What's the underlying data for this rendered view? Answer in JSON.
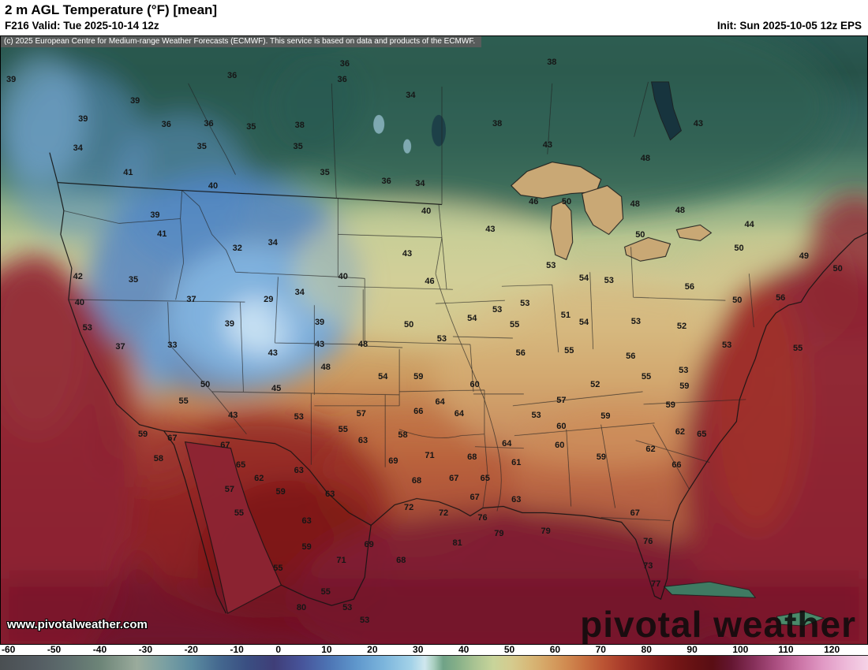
{
  "header": {
    "title": "2 m AGL Temperature (°F) [mean]",
    "valid_label": "F216 Valid: Tue 2025-10-14 12z",
    "init_label": "Init: Sun 2025-10-05 12z EPS"
  },
  "map": {
    "copyright": "(c) 2025 European Centre for Medium-range Weather Forecasts (ECMWF). This service is based on data and products of the ECMWF.",
    "watermark": "pivotal weather",
    "website": "www.pivotalweather.com",
    "units": "°F",
    "label_format": [
      "temp_f",
      "x_pct",
      "y_pct"
    ],
    "labels": [
      [
        36,
        39.7,
        4.5
      ],
      [
        38,
        63.6,
        4.3
      ],
      [
        39,
        1.2,
        7.1
      ],
      [
        36,
        26.7,
        6.5
      ],
      [
        36,
        39.4,
        7.1
      ],
      [
        39,
        15.5,
        10.7
      ],
      [
        34,
        47.3,
        9.7
      ],
      [
        39,
        9.5,
        13.6
      ],
      [
        36,
        19.1,
        14.5
      ],
      [
        36,
        24.0,
        14.4
      ],
      [
        35,
        28.9,
        14.9
      ],
      [
        38,
        34.5,
        14.6
      ],
      [
        38,
        57.3,
        14.4
      ],
      [
        43,
        80.5,
        14.4
      ],
      [
        34,
        8.9,
        18.4
      ],
      [
        35,
        23.2,
        18.1
      ],
      [
        35,
        34.3,
        18.2
      ],
      [
        43,
        63.1,
        17.9
      ],
      [
        48,
        74.4,
        20.1
      ],
      [
        41,
        14.7,
        22.5
      ],
      [
        35,
        37.4,
        22.4
      ],
      [
        36,
        44.5,
        23.9
      ],
      [
        34,
        48.4,
        24.2
      ],
      [
        40,
        24.5,
        24.7
      ],
      [
        46,
        61.5,
        27.3
      ],
      [
        50,
        65.3,
        27.3
      ],
      [
        48,
        73.2,
        27.6
      ],
      [
        48,
        78.4,
        28.7
      ],
      [
        39,
        17.8,
        29.4
      ],
      [
        40,
        49.1,
        28.8
      ],
      [
        44,
        86.4,
        31.0
      ],
      [
        41,
        18.6,
        32.6
      ],
      [
        43,
        56.5,
        31.8
      ],
      [
        50,
        73.8,
        32.7
      ],
      [
        32,
        27.3,
        34.9
      ],
      [
        34,
        31.4,
        34.0
      ],
      [
        50,
        85.2,
        34.9
      ],
      [
        49,
        92.7,
        36.2
      ],
      [
        50,
        96.6,
        38.3
      ],
      [
        42,
        8.9,
        39.5
      ],
      [
        35,
        15.3,
        40.1
      ],
      [
        43,
        46.9,
        35.8
      ],
      [
        46,
        49.5,
        40.4
      ],
      [
        53,
        63.5,
        37.8
      ],
      [
        54,
        67.3,
        39.8
      ],
      [
        53,
        70.2,
        40.2
      ],
      [
        56,
        79.5,
        41.3
      ],
      [
        50,
        85.0,
        43.5
      ],
      [
        56,
        90.0,
        43.1
      ],
      [
        40,
        9.1,
        43.9
      ],
      [
        37,
        22.0,
        43.3
      ],
      [
        34,
        34.5,
        42.2
      ],
      [
        29,
        30.9,
        43.3
      ],
      [
        40,
        39.5,
        39.5
      ],
      [
        39,
        36.8,
        47.1
      ],
      [
        53,
        57.3,
        45.0
      ],
      [
        53,
        60.5,
        44.0
      ],
      [
        55,
        59.3,
        47.5
      ],
      [
        51,
        65.2,
        45.9
      ],
      [
        54,
        67.3,
        47.1
      ],
      [
        53,
        73.3,
        47.0
      ],
      [
        52,
        78.6,
        47.7
      ],
      [
        53,
        10.0,
        48.0
      ],
      [
        39,
        26.4,
        47.3
      ],
      [
        50,
        47.1,
        47.5
      ],
      [
        54,
        54.4,
        46.4
      ],
      [
        37,
        13.8,
        51.1
      ],
      [
        33,
        19.8,
        50.8
      ],
      [
        43,
        31.4,
        52.1
      ],
      [
        43,
        36.8,
        50.7
      ],
      [
        48,
        41.8,
        50.7
      ],
      [
        53,
        50.9,
        49.8
      ],
      [
        56,
        60.0,
        52.1
      ],
      [
        55,
        65.6,
        51.7
      ],
      [
        56,
        72.7,
        52.6
      ],
      [
        53,
        83.8,
        50.8
      ],
      [
        55,
        92.0,
        51.4
      ],
      [
        48,
        37.5,
        54.5
      ],
      [
        50,
        23.6,
        57.3
      ],
      [
        55,
        21.1,
        60.0
      ],
      [
        54,
        44.1,
        56.0
      ],
      [
        59,
        48.2,
        56.0
      ],
      [
        60,
        54.7,
        57.3
      ],
      [
        57,
        64.7,
        59.9
      ],
      [
        52,
        68.6,
        57.3
      ],
      [
        55,
        74.5,
        56.0
      ],
      [
        53,
        78.8,
        55.0
      ],
      [
        59,
        78.9,
        57.6
      ],
      [
        45,
        31.8,
        58.0
      ],
      [
        64,
        50.7,
        60.2
      ],
      [
        66,
        48.2,
        61.7
      ],
      [
        64,
        52.9,
        62.1
      ],
      [
        53,
        61.8,
        62.4
      ],
      [
        60,
        64.7,
        64.2
      ],
      [
        59,
        69.8,
        62.5
      ],
      [
        59,
        77.3,
        60.7
      ],
      [
        62,
        78.4,
        65.1
      ],
      [
        65,
        80.9,
        65.5
      ],
      [
        59,
        16.4,
        65.5
      ],
      [
        67,
        19.8,
        66.2
      ],
      [
        43,
        26.8,
        62.4
      ],
      [
        53,
        34.4,
        62.7
      ],
      [
        57,
        41.6,
        62.1
      ],
      [
        55,
        39.5,
        64.7
      ],
      [
        63,
        41.8,
        66.6
      ],
      [
        58,
        46.4,
        65.6
      ],
      [
        71,
        49.5,
        69.0
      ],
      [
        68,
        54.4,
        69.2
      ],
      [
        64,
        58.4,
        67.0
      ],
      [
        61,
        59.5,
        70.2
      ],
      [
        60,
        64.5,
        67.3
      ],
      [
        58,
        18.2,
        69.5
      ],
      [
        67,
        25.9,
        67.3
      ],
      [
        65,
        27.7,
        70.5
      ],
      [
        62,
        29.8,
        72.7
      ],
      [
        63,
        34.4,
        71.5
      ],
      [
        69,
        45.3,
        69.9
      ],
      [
        59,
        69.3,
        69.2
      ],
      [
        62,
        75.0,
        67.9
      ],
      [
        66,
        78.0,
        70.5
      ],
      [
        57,
        26.4,
        74.6
      ],
      [
        59,
        32.3,
        75.0
      ],
      [
        63,
        38.0,
        75.3
      ],
      [
        68,
        48.0,
        73.1
      ],
      [
        67,
        52.3,
        72.7
      ],
      [
        65,
        55.9,
        72.7
      ],
      [
        67,
        54.7,
        75.9
      ],
      [
        63,
        59.5,
        76.3
      ],
      [
        72,
        47.1,
        77.6
      ],
      [
        72,
        51.1,
        78.5
      ],
      [
        76,
        55.6,
        79.3
      ],
      [
        67,
        73.2,
        78.5
      ],
      [
        63,
        35.3,
        79.8
      ],
      [
        55,
        27.5,
        78.5
      ],
      [
        69,
        42.5,
        83.7
      ],
      [
        68,
        46.2,
        86.3
      ],
      [
        81,
        52.7,
        83.4
      ],
      [
        79,
        57.5,
        81.9
      ],
      [
        79,
        62.9,
        81.5
      ],
      [
        76,
        74.7,
        83.2
      ],
      [
        59,
        35.3,
        84.1
      ],
      [
        55,
        32.0,
        87.6
      ],
      [
        71,
        39.3,
        86.3
      ],
      [
        73,
        74.7,
        87.1
      ],
      [
        55,
        37.5,
        91.5
      ],
      [
        53,
        40.0,
        94.0
      ],
      [
        53,
        42.0,
        96.1
      ],
      [
        80,
        34.7,
        94.0
      ],
      [
        77,
        75.6,
        90.2
      ]
    ]
  },
  "colorbar": {
    "min": -60,
    "max": 130,
    "ticks": [
      "-60",
      "-50",
      "-40",
      "-30",
      "-20",
      "-10",
      "0",
      "10",
      "20",
      "30",
      "40",
      "50",
      "60",
      "70",
      "80",
      "90",
      "100",
      "110",
      "120"
    ],
    "stops": [
      [
        -60,
        "#4a4f52"
      ],
      [
        -52,
        "#545c62"
      ],
      [
        -45,
        "#5e6e6e"
      ],
      [
        -38,
        "#6d8578"
      ],
      [
        -30,
        "#9aab9c"
      ],
      [
        -24,
        "#7ba0a2"
      ],
      [
        -18,
        "#5b8ba0"
      ],
      [
        -12,
        "#44688f"
      ],
      [
        -6,
        "#3a4f82"
      ],
      [
        0,
        "#3f3e78"
      ],
      [
        6,
        "#47549a"
      ],
      [
        12,
        "#4d74b4"
      ],
      [
        18,
        "#5f97cc"
      ],
      [
        24,
        "#7cb5dc"
      ],
      [
        30,
        "#a3d2e8"
      ],
      [
        33,
        "#cfe7ee"
      ],
      [
        35,
        "#a8cebe"
      ],
      [
        37,
        "#6fa287"
      ],
      [
        40,
        "#85af88"
      ],
      [
        44,
        "#aac493"
      ],
      [
        48,
        "#c8d49a"
      ],
      [
        52,
        "#d5cb8e"
      ],
      [
        56,
        "#d7b877"
      ],
      [
        60,
        "#d5a263"
      ],
      [
        64,
        "#d08a50"
      ],
      [
        68,
        "#c76f40"
      ],
      [
        72,
        "#bb5434"
      ],
      [
        76,
        "#aa3d2b"
      ],
      [
        80,
        "#972c24"
      ],
      [
        84,
        "#851f1e"
      ],
      [
        88,
        "#741616"
      ],
      [
        92,
        "#651113"
      ],
      [
        96,
        "#590e14"
      ],
      [
        100,
        "#641631"
      ],
      [
        105,
        "#86305a"
      ],
      [
        110,
        "#ab4f81"
      ],
      [
        115,
        "#cb74a6"
      ],
      [
        120,
        "#e098c4"
      ],
      [
        125,
        "#edb8d8"
      ],
      [
        130,
        "#f5d2e6"
      ]
    ]
  }
}
